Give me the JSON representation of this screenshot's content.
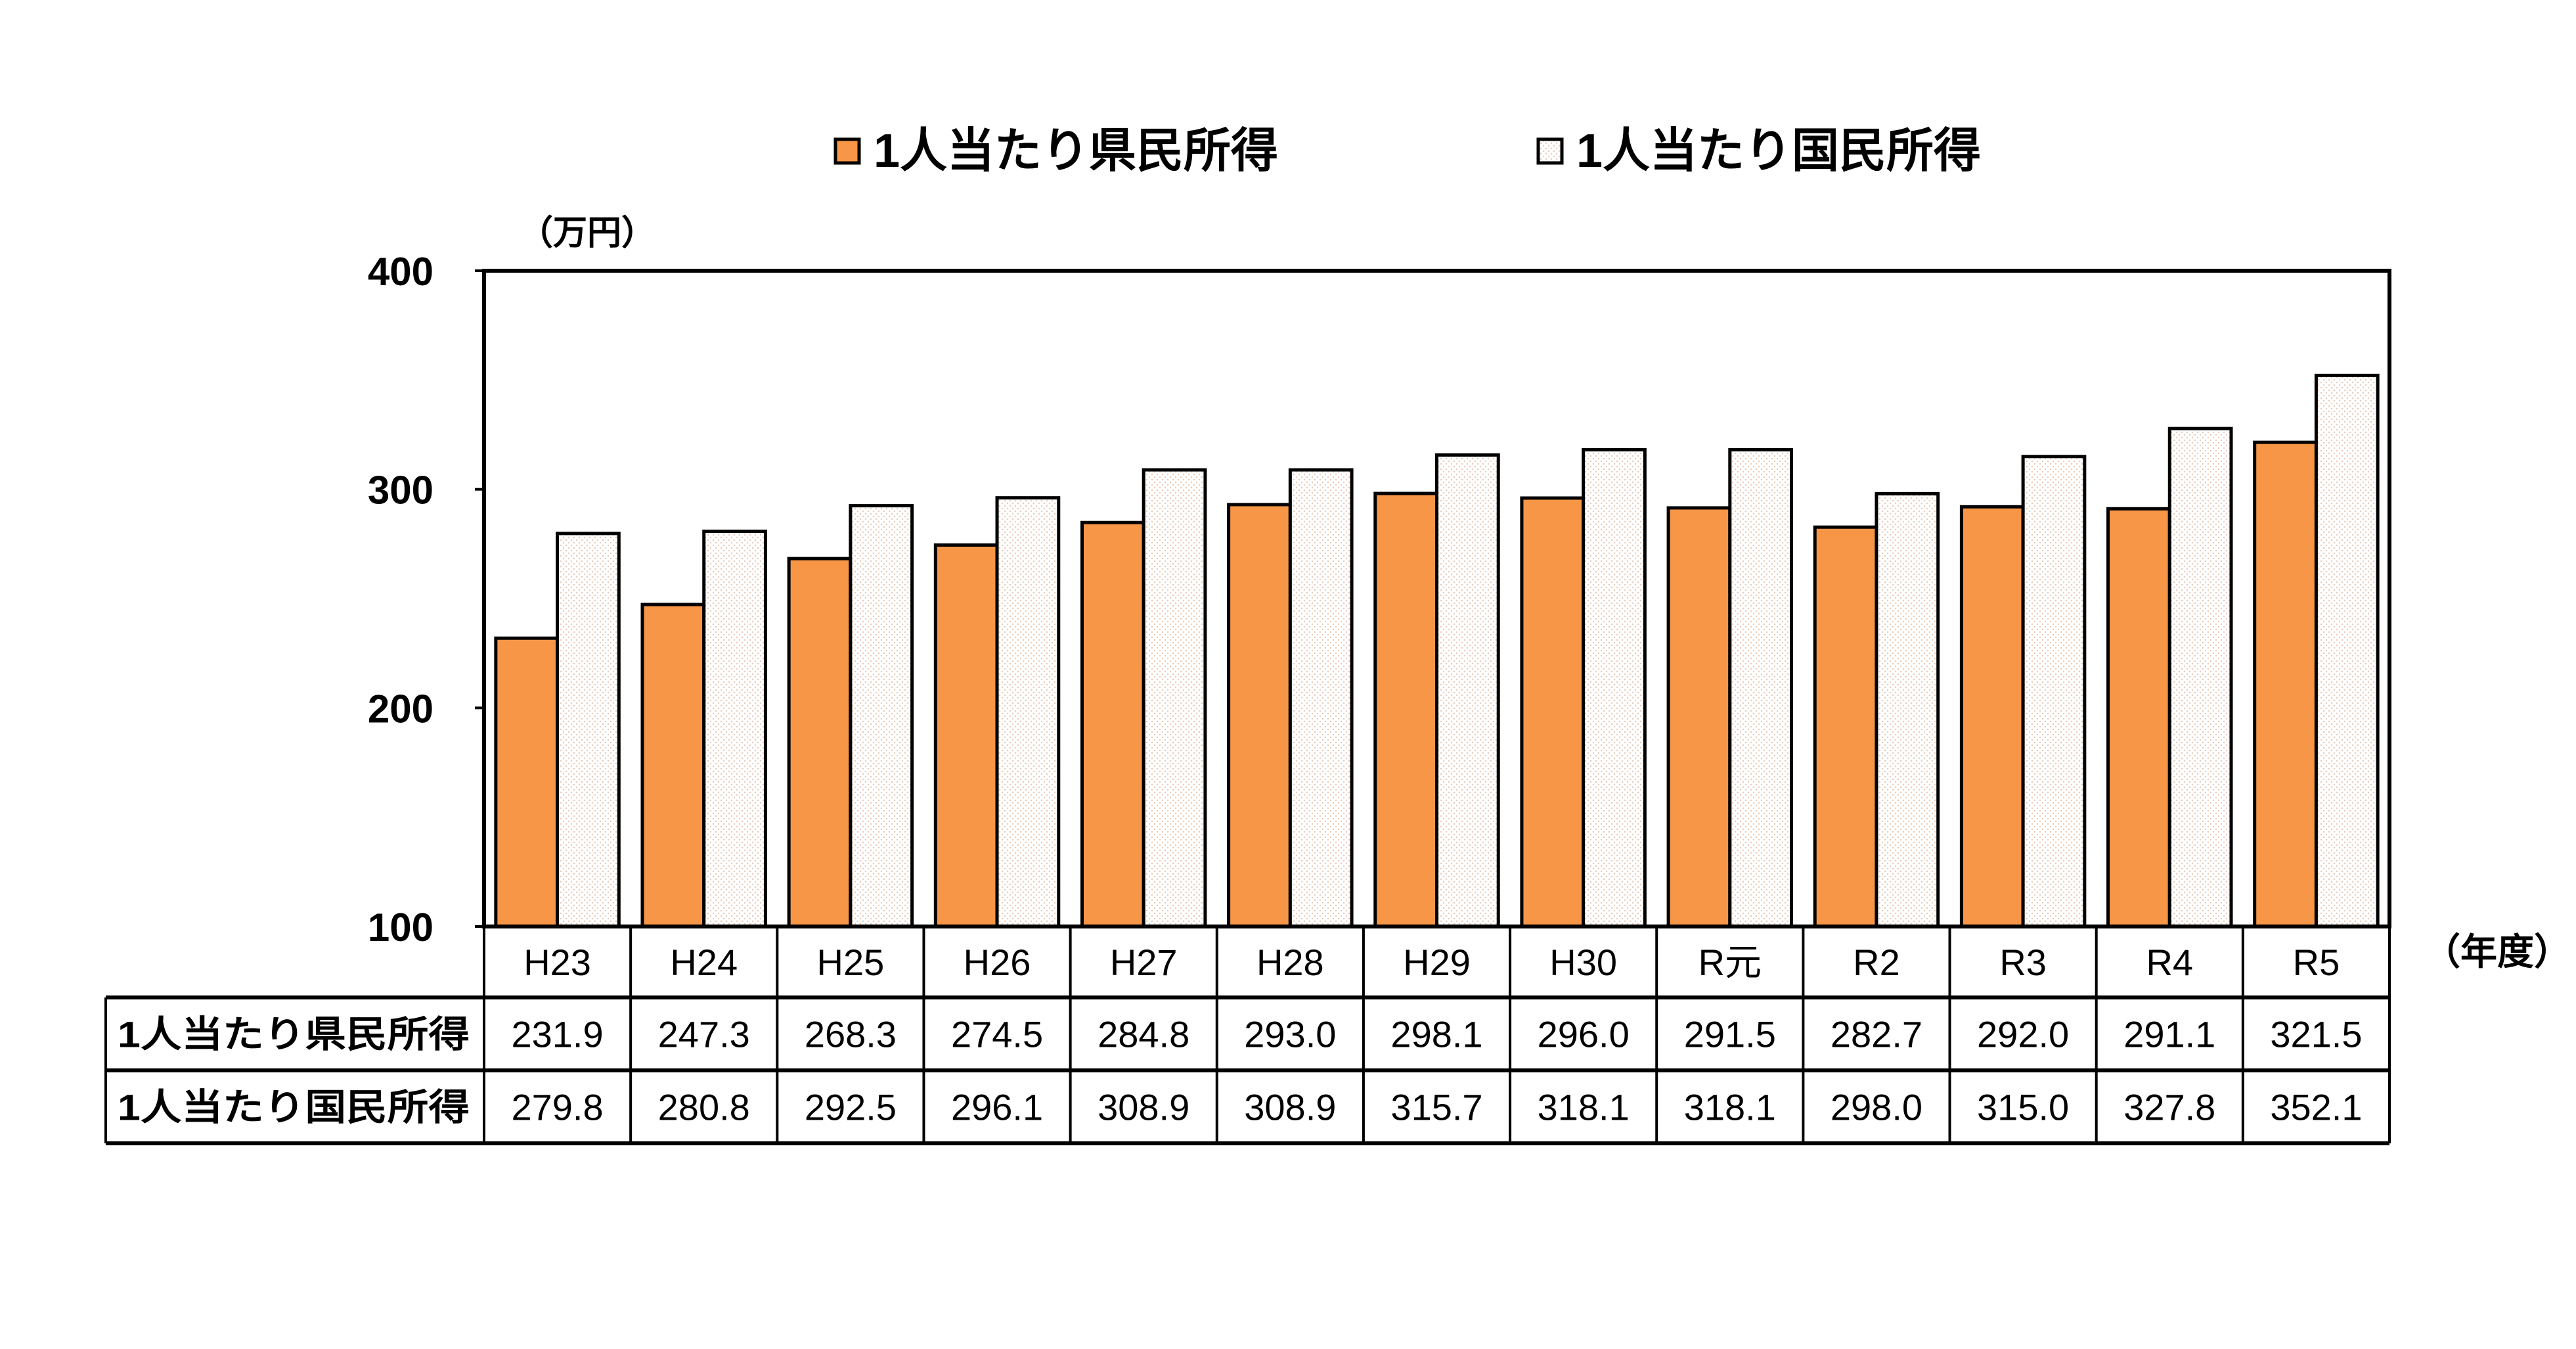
{
  "chart_data": {
    "type": "bar",
    "title": "",
    "ylabel": "（万円）",
    "xlabel": "（年度）",
    "ylim": [
      100,
      400
    ],
    "yticks": [
      100,
      200,
      300,
      400
    ],
    "grid": false,
    "legend_position": "top",
    "categories": [
      "H23",
      "H24",
      "H25",
      "H26",
      "H27",
      "H28",
      "H29",
      "H30",
      "R元",
      "R2",
      "R3",
      "R4",
      "R5"
    ],
    "series": [
      {
        "name": "1人当たり県民所得",
        "color": "#F79646",
        "values": [
          231.9,
          247.3,
          268.3,
          274.5,
          284.8,
          293.0,
          298.1,
          296.0,
          291.5,
          282.7,
          292.0,
          291.1,
          321.5
        ],
        "labels": [
          "231.9",
          "247.3",
          "268.3",
          "274.5",
          "284.8",
          "293.0",
          "298.1",
          "296.0",
          "291.5",
          "282.7",
          "292.0",
          "291.1",
          "321.5"
        ]
      },
      {
        "name": "1人当たり国民所得",
        "color": "#FDF6F0",
        "values": [
          279.8,
          280.8,
          292.5,
          296.1,
          308.9,
          308.9,
          315.7,
          318.1,
          318.1,
          298.0,
          315.0,
          327.8,
          352.1
        ],
        "labels": [
          "279.8",
          "280.8",
          "292.5",
          "296.1",
          "308.9",
          "308.9",
          "315.7",
          "318.1",
          "318.1",
          "298.0",
          "315.0",
          "327.8",
          "352.1"
        ]
      }
    ],
    "data_table": true
  }
}
